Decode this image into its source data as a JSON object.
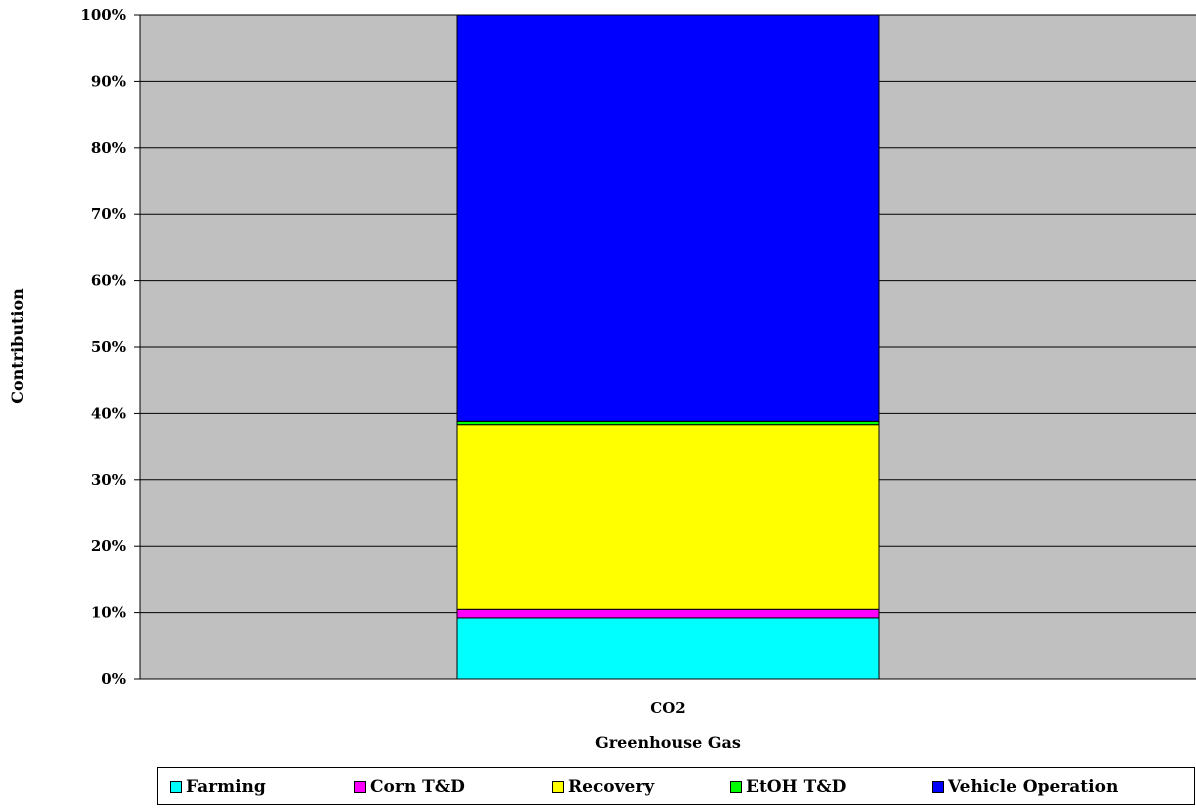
{
  "chart_data": {
    "type": "bar",
    "stacked": "percent",
    "categories": [
      "CO2"
    ],
    "xlabel": "Greenhouse Gas",
    "ylabel": "Contribution",
    "ylim": [
      0,
      100
    ],
    "yticks": [
      "0%",
      "10%",
      "20%",
      "30%",
      "40%",
      "50%",
      "60%",
      "70%",
      "80%",
      "90%",
      "100%"
    ],
    "grid": true,
    "plot_background": "#c0c0c0",
    "legend_position": "bottom",
    "series": [
      {
        "name": "Farming",
        "values": [
          9.2
        ],
        "color": "#00ffff"
      },
      {
        "name": "Corn T&D",
        "values": [
          1.3
        ],
        "color": "#ff00ff"
      },
      {
        "name": "Recovery",
        "values": [
          27.8
        ],
        "color": "#ffff00"
      },
      {
        "name": "EtOH T&D",
        "values": [
          0.5
        ],
        "color": "#00ff00"
      },
      {
        "name": "Vehicle Operation",
        "values": [
          61.2
        ],
        "color": "#0000ff"
      }
    ]
  }
}
